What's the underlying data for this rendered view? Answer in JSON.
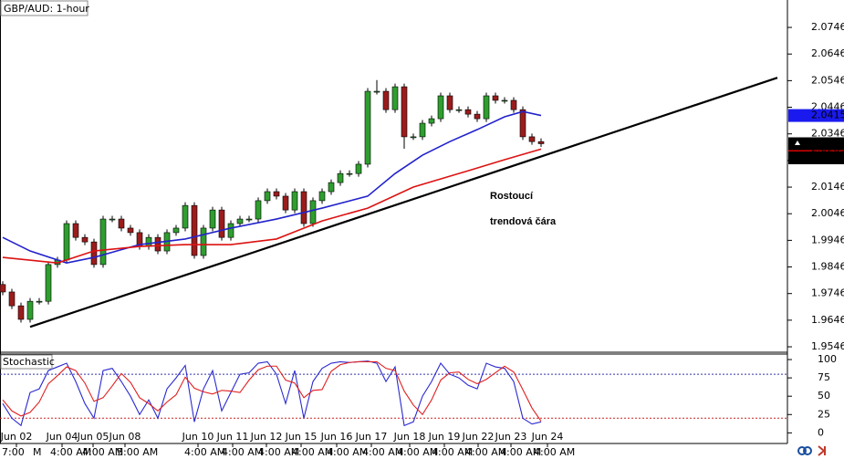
{
  "chart_data": [
    {
      "type": "candlestick",
      "title": "GBP/AUD: 1-hour",
      "open": [
        1.978,
        1.9752,
        1.97,
        1.9649,
        1.9717,
        1.9717,
        1.9855,
        1.9872,
        2.0009,
        1.9957,
        1.994,
        1.9855,
        2.0026,
        2.0026,
        1.9992,
        1.9975,
        1.9923,
        1.9957,
        1.9906,
        1.9975,
        1.9992,
        2.0077,
        1.9889,
        1.9992,
        2.006,
        1.9957,
        2.0009,
        2.0026,
        2.0026,
        2.0095,
        2.0129,
        2.0112,
        2.006,
        2.0129,
        2.0009,
        2.0095,
        2.0129,
        2.0163,
        2.0197,
        2.0197,
        2.0232,
        2.0506,
        2.0506,
        2.0437,
        2.0523,
        2.0335,
        2.0335,
        2.0386,
        2.0403,
        2.0489,
        2.0437,
        2.0437,
        2.042,
        2.0403,
        2.0489,
        2.0472,
        2.0472,
        2.0437,
        2.0335,
        2.0317
      ],
      "high": [
        1.9792,
        1.9764,
        1.9712,
        1.9729,
        1.9729,
        1.9867,
        1.9884,
        2.0021,
        2.0021,
        1.9969,
        1.9952,
        2.0038,
        2.0038,
        2.0038,
        2.0004,
        1.9987,
        1.9969,
        1.9969,
        1.9987,
        2.0004,
        2.0089,
        2.0089,
        2.0004,
        2.0072,
        2.0072,
        2.0021,
        2.0038,
        2.0038,
        2.0107,
        2.0141,
        2.0141,
        2.0124,
        2.0141,
        2.0141,
        2.0107,
        2.0141,
        2.0175,
        2.0209,
        2.0209,
        2.0244,
        2.0518,
        2.0548,
        2.0518,
        2.0535,
        2.0535,
        2.0347,
        2.0398,
        2.0415,
        2.0501,
        2.0501,
        2.0449,
        2.0449,
        2.0432,
        2.0501,
        2.0501,
        2.0484,
        2.0484,
        2.0449,
        2.0347,
        2.0329
      ],
      "low": [
        1.974,
        1.9688,
        1.9637,
        1.9637,
        1.9705,
        1.9705,
        1.9843,
        1.986,
        1.9945,
        1.9928,
        1.9843,
        1.9843,
        2.0014,
        1.998,
        1.9963,
        1.9911,
        1.9911,
        1.9894,
        1.9894,
        1.9963,
        1.998,
        1.9877,
        1.9877,
        1.998,
        1.9945,
        1.9945,
        1.9997,
        2.0014,
        2.0014,
        2.0083,
        2.01,
        2.0048,
        2.0048,
        1.9997,
        1.9997,
        2.0083,
        2.0117,
        2.0151,
        2.0185,
        2.0185,
        2.022,
        2.0494,
        2.0425,
        2.0425,
        2.029,
        2.0323,
        2.0323,
        2.0374,
        2.0391,
        2.0425,
        2.0425,
        2.0408,
        2.0391,
        2.0391,
        2.046,
        2.046,
        2.0425,
        2.0323,
        2.0305,
        2.0297
      ],
      "close": [
        1.9752,
        1.97,
        1.9649,
        1.9717,
        1.9717,
        1.9855,
        1.9872,
        2.0009,
        1.9957,
        1.994,
        1.9855,
        2.0026,
        2.0026,
        1.9992,
        1.9975,
        1.9923,
        1.9957,
        1.9906,
        1.9975,
        1.9992,
        2.0077,
        1.9889,
        1.9992,
        2.006,
        1.9957,
        2.0009,
        2.0026,
        2.0026,
        2.0095,
        2.0129,
        2.0112,
        2.006,
        2.0129,
        2.0009,
        2.0095,
        2.0129,
        2.0163,
        2.0197,
        2.0197,
        2.0232,
        2.0506,
        2.0506,
        2.0437,
        2.0523,
        2.0335,
        2.0335,
        2.0386,
        2.0403,
        2.0489,
        2.0437,
        2.0437,
        2.042,
        2.0403,
        2.0489,
        2.0472,
        2.0472,
        2.0437,
        2.0335,
        2.0317,
        2.0309
      ],
      "up_color": "#2f9e2f",
      "down_color": "#9b1c1c",
      "xlim": [
        -0.3,
        86
      ],
      "ylim": [
        1.9529,
        2.0849
      ],
      "yticks": [
        1.9546,
        1.9646,
        1.9746,
        1.9846,
        1.9946,
        2.0046,
        2.0146,
        2.0246,
        2.0346,
        2.0446,
        2.0546,
        2.0646,
        2.0746
      ],
      "xticks": [
        {
          "value": 1.5,
          "label": "Jun 02"
        },
        {
          "value": 6.5,
          "label": "Jun 04"
        },
        {
          "value": 9.9,
          "label": "Jun 05"
        },
        {
          "value": 13.4,
          "label": "Jun 08"
        },
        {
          "value": 21.4,
          "label": "Jun 10"
        },
        {
          "value": 25.2,
          "label": "Jun 11"
        },
        {
          "value": 28.9,
          "label": "Jun 12"
        },
        {
          "value": 32.7,
          "label": "Jun 15"
        },
        {
          "value": 36.6,
          "label": "Jun 16"
        },
        {
          "value": 40.4,
          "label": "Jun 17"
        },
        {
          "value": 44.6,
          "label": "Jun 18"
        },
        {
          "value": 48.4,
          "label": "Jun 19"
        },
        {
          "value": 52.1,
          "label": "Jun 22"
        },
        {
          "value": 55.7,
          "label": "Jun 23"
        },
        {
          "value": 59.7,
          "label": "Jun 24"
        }
      ],
      "xtick_times": [
        {
          "value": -0.1,
          "label": "7:00"
        },
        {
          "value": 3.3,
          "label": "M"
        },
        {
          "value": 5.2,
          "label": "4:00 AM"
        },
        {
          "value": 8.7,
          "label": "4:00 AM"
        },
        {
          "value": 12.5,
          "label": "5:00 AM"
        },
        {
          "value": 19.9,
          "label": "4:00 AM"
        },
        {
          "value": 24,
          "label": "4:00 AM"
        },
        {
          "value": 28,
          "label": "4:00 AM"
        },
        {
          "value": 31.7,
          "label": "4:00 AM"
        },
        {
          "value": 35.5,
          "label": "4:00 AM"
        },
        {
          "value": 39.4,
          "label": "4:00 AM"
        },
        {
          "value": 43.2,
          "label": "4:00 AM"
        },
        {
          "value": 47,
          "label": "4:00 AM"
        },
        {
          "value": 50.7,
          "label": "4:00 AM"
        },
        {
          "value": 54.5,
          "label": "4:00 AM"
        },
        {
          "value": 58.2,
          "label": "4:00 AM"
        }
      ],
      "overlays": [
        {
          "color": "#2222cc",
          "x": [
            0,
            3,
            7,
            10,
            15,
            20,
            25,
            30,
            35,
            40,
            43,
            46,
            49,
            52,
            55,
            57,
            59
          ],
          "values": [
            1.9957,
            1.9906,
            1.9861,
            1.9882,
            1.993,
            1.9951,
            1.9992,
            2.0026,
            2.0067,
            2.0112,
            2.0197,
            2.0266,
            2.0317,
            2.0362,
            2.041,
            2.043,
            2.0415
          ]
        },
        {
          "color": "#dd1111",
          "x": [
            0,
            6,
            10,
            15,
            20,
            25,
            30,
            35,
            40,
            45,
            50,
            55,
            59
          ],
          "values": [
            1.9882,
            1.9861,
            1.9906,
            1.9923,
            1.993,
            1.993,
            1.9951,
            2.0019,
            2.0067,
            2.0146,
            2.0197,
            2.0249,
            2.0289
          ]
        }
      ],
      "price_labels": [
        {
          "value": 2.0415,
          "color": "#1a1aee"
        },
        {
          "value": 2.0289,
          "color": "#e00000"
        },
        {
          "value": 2.0309,
          "color": "#000000"
        },
        {
          "value": 2.0256,
          "color": "#000000"
        }
      ],
      "trendline": {
        "color": "#000000",
        "x": [
          3,
          84.9
        ],
        "values": [
          1.9621,
          2.0557
        ]
      },
      "annotation": [
        "Rostoucí",
        "trendová čára"
      ]
    },
    {
      "type": "line",
      "title": "Stochastic",
      "series": [
        {
          "color": "#2a2ad0",
          "values": [
            40,
            20,
            10,
            55,
            60,
            85,
            90,
            95,
            70,
            40,
            20,
            85,
            88,
            70,
            50,
            25,
            45,
            20,
            60,
            75,
            92,
            15,
            60,
            85,
            30,
            55,
            80,
            82,
            95,
            97,
            80,
            40,
            85,
            20,
            70,
            88,
            95,
            97,
            96,
            97,
            98,
            95,
            70,
            90,
            10,
            15,
            50,
            70,
            95,
            80,
            75,
            65,
            60,
            95,
            90,
            88,
            70,
            20,
            12,
            15
          ]
        },
        {
          "color": "#e02020",
          "values": [
            45,
            30,
            23,
            28,
            42,
            67,
            78,
            90,
            85,
            68,
            43,
            48,
            64,
            81,
            69,
            48,
            40,
            30,
            42,
            52,
            76,
            61,
            56,
            53,
            58,
            57,
            55,
            72,
            86,
            91,
            91,
            72,
            68,
            48,
            58,
            59,
            84,
            93,
            96,
            97,
            97,
            97,
            88,
            85,
            57,
            38,
            25,
            45,
            72,
            82,
            83,
            73,
            67,
            73,
            82,
            91,
            83,
            59,
            34,
            16
          ]
        }
      ],
      "ylim": [
        -12,
        107.5
      ],
      "yticks": [
        0,
        25,
        50,
        75,
        100
      ],
      "levels": [
        {
          "value": 80,
          "color": "#3333aa"
        },
        {
          "value": 20,
          "color": "#cc2222"
        }
      ]
    }
  ]
}
